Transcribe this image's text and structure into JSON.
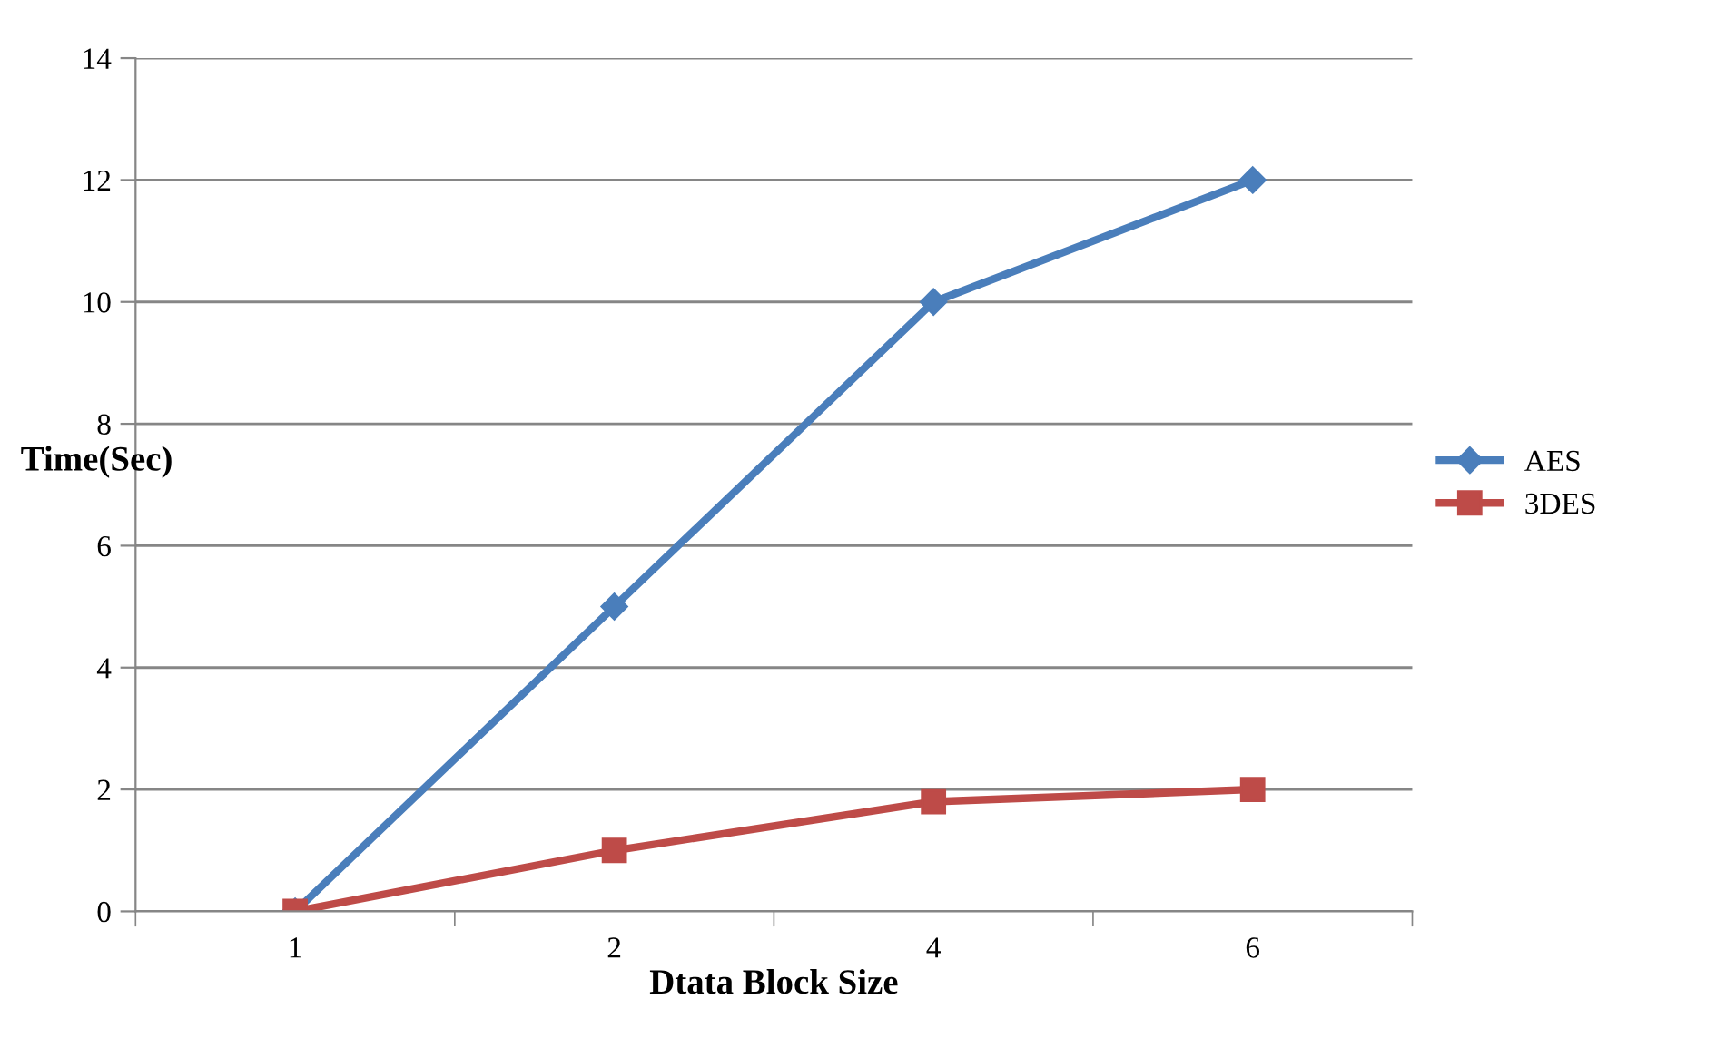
{
  "chart_data": {
    "type": "line",
    "xlabel": "Dtata Block Size",
    "ylabel": "Time(Sec)",
    "categories": [
      "1",
      "2",
      "4",
      "6"
    ],
    "series": [
      {
        "name": "AES",
        "color": "#4a7ebb",
        "values": [
          0,
          5,
          10,
          12
        ],
        "marker": "diamond"
      },
      {
        "name": "3DES",
        "color": "#be4b48",
        "values": [
          0,
          1,
          1.8,
          2
        ],
        "marker": "square"
      }
    ],
    "ylim": [
      0,
      14
    ],
    "yticks": [
      0,
      2,
      4,
      6,
      8,
      10,
      12,
      14
    ],
    "grid": "y",
    "legend": "right",
    "line_style": "solid"
  }
}
